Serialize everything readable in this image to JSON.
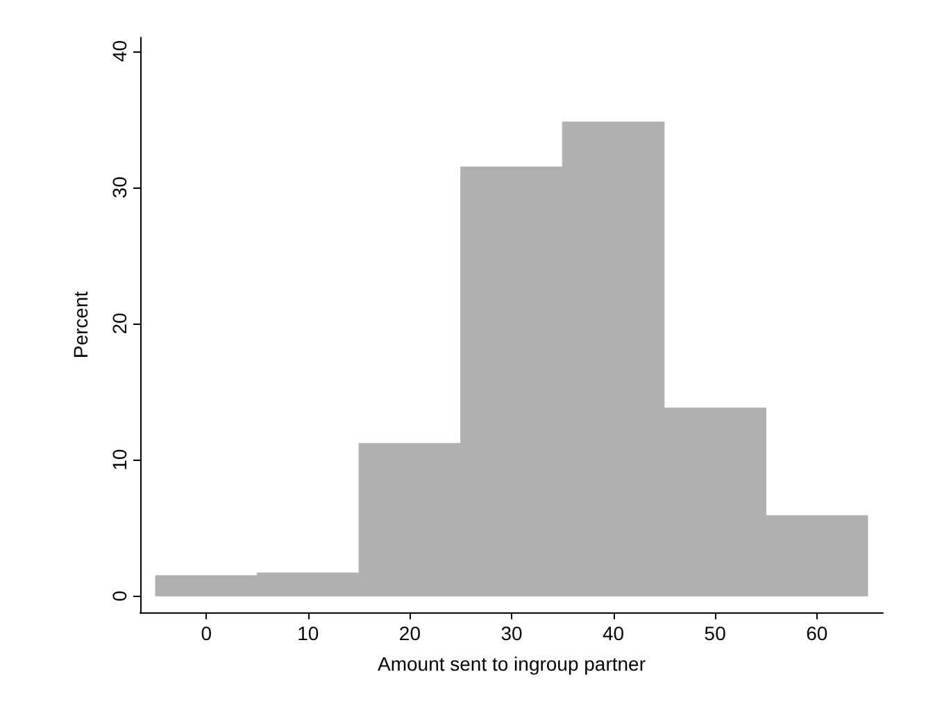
{
  "chart_data": {
    "type": "histogram",
    "xlabel": "Amount sent to ingroup partner",
    "ylabel": "Percent",
    "bins": [
      -5,
      5,
      15,
      25,
      35,
      45,
      55,
      65
    ],
    "values": [
      1.5,
      1.7,
      11.2,
      31.5,
      34.8,
      13.8,
      5.9
    ],
    "color": "#b0b0b0",
    "xlim": [
      -6.5,
      66.5
    ],
    "xticks": [
      0,
      10,
      20,
      30,
      40,
      50,
      60
    ],
    "ylim": [
      -1.2,
      41
    ],
    "yticks": [
      0,
      10,
      20,
      30,
      40
    ],
    "grid": false
  }
}
